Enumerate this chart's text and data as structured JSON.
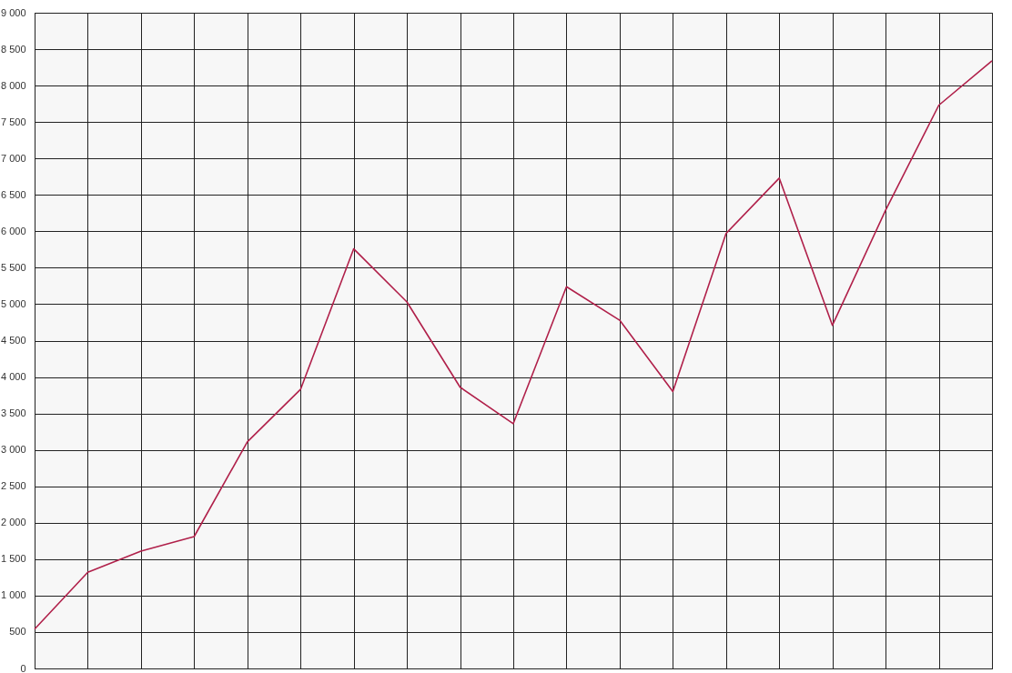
{
  "chart_data": {
    "type": "line",
    "categories": [
      null,
      null,
      null,
      null,
      null,
      null,
      null,
      null,
      null,
      null,
      null,
      null,
      null,
      null,
      null,
      null,
      null,
      null,
      null
    ],
    "series": [
      {
        "color": "#b0204a",
        "values": [
          540,
          1320,
          1610,
          1810,
          3110,
          3830,
          5760,
          5030,
          3860,
          3360,
          5240,
          4780,
          3800,
          5970,
          6730,
          4710,
          6290,
          7730,
          8340
        ]
      }
    ],
    "ylim": [
      0,
      9000
    ],
    "yticks": [
      0,
      500,
      {
        "value": 1000,
        "label": "1 000"
      },
      {
        "value": 1500,
        "label": "1 500"
      },
      {
        "value": 2000,
        "label": "2 000"
      },
      {
        "value": 2500,
        "label": "2 500"
      },
      {
        "value": 3000,
        "label": "3 000"
      },
      {
        "value": 3500,
        "label": "3 500"
      },
      {
        "value": 4000,
        "label": "4 000"
      },
      {
        "value": 4500,
        "label": "4 500"
      },
      {
        "value": 5000,
        "label": "5 000"
      },
      {
        "value": 5500,
        "label": "5 500"
      },
      {
        "value": 6000,
        "label": "6 000"
      },
      {
        "value": 6500,
        "label": "6 500"
      },
      {
        "value": 7000,
        "label": "7 000"
      },
      {
        "value": 7500,
        "label": "7 500"
      },
      {
        "value": 8000,
        "label": "8 000"
      },
      {
        "value": 8500,
        "label": "8 500"
      },
      {
        "value": 9000,
        "label": "9 000"
      }
    ],
    "grid": true,
    "tick_labels": "y",
    "marker": "none",
    "line_style": "solid"
  }
}
